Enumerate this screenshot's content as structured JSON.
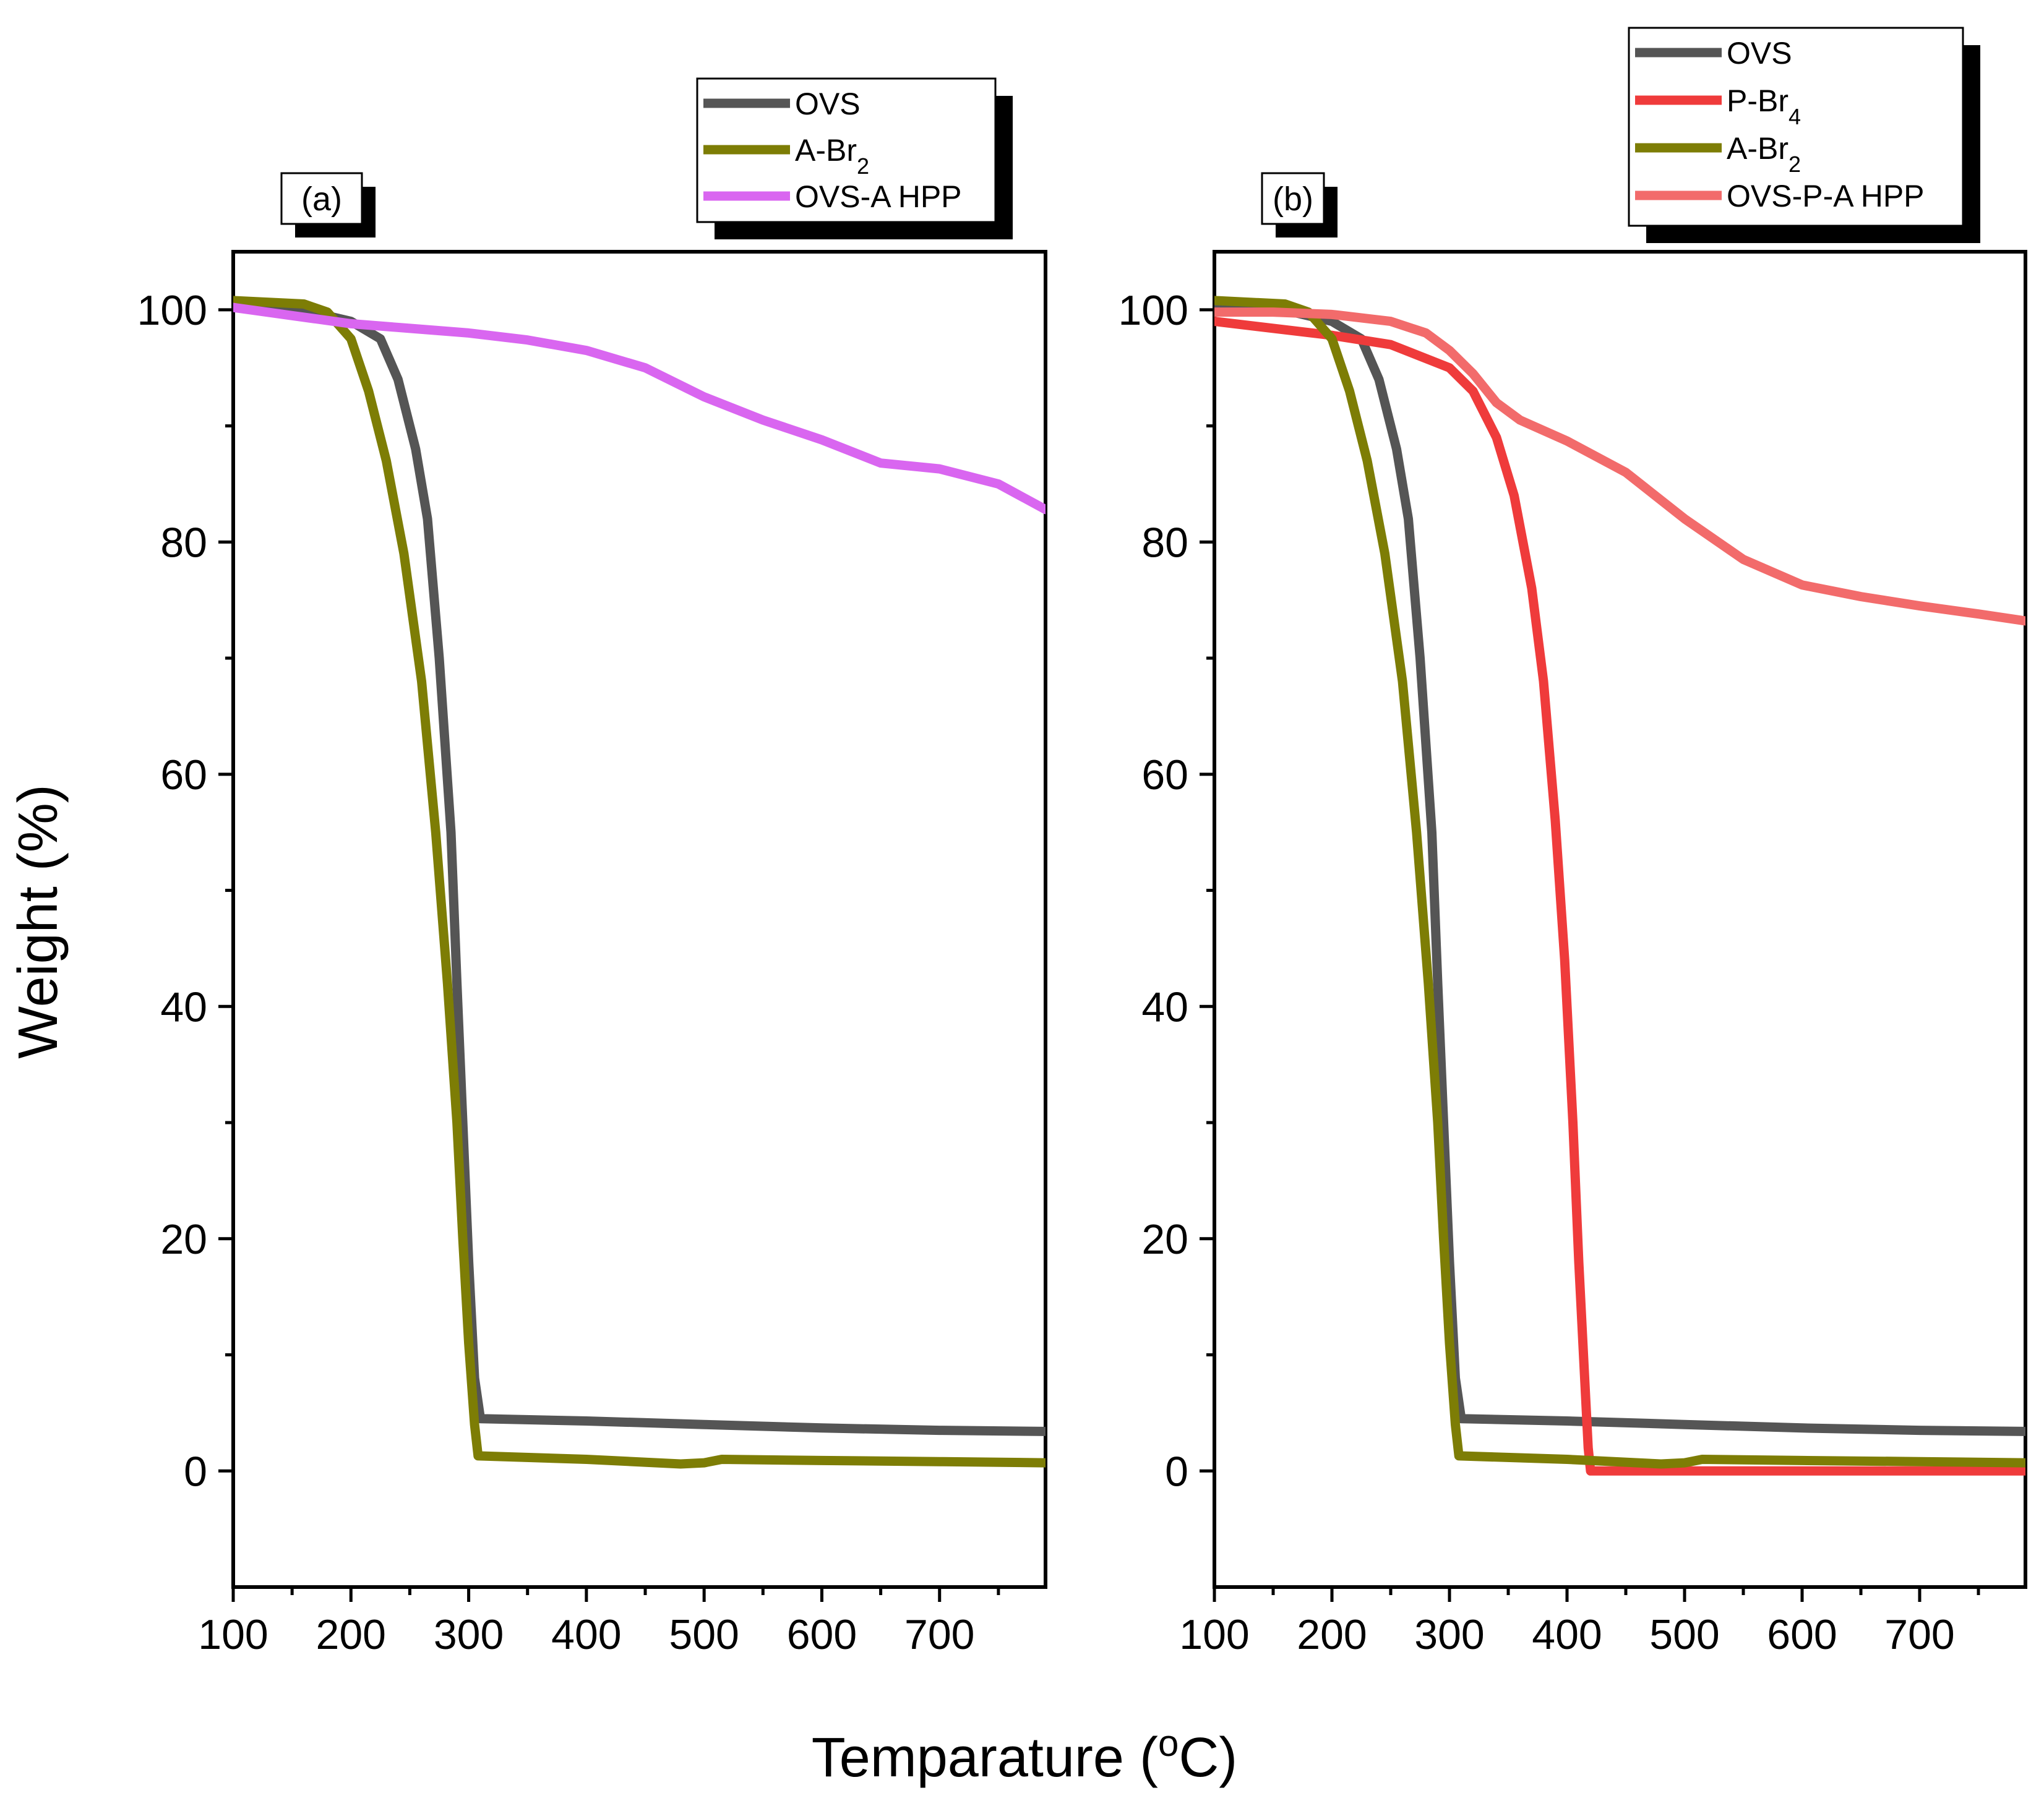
{
  "figure": {
    "ylabel": "Weight (%)",
    "xlabel": "Temparature (",
    "xlabel_sup": "o",
    "xlabel_end": "C)"
  },
  "colors": {
    "OVS": "#555555",
    "P-Br4": "#ef3b3b",
    "A-Br2": "#7d7d05",
    "OVS-A HPP": "#d966f0",
    "OVS-P-A HPP": "#f26b6b"
  },
  "chart_data": [
    {
      "type": "line",
      "panel": "(a)",
      "xlabel": "Temparature (oC)",
      "ylabel": "Weight (%)",
      "xlim": [
        100,
        790
      ],
      "ylim": [
        -10,
        105
      ],
      "xticks": [
        100,
        200,
        300,
        400,
        500,
        600,
        700
      ],
      "yticks": [
        0,
        20,
        40,
        60,
        80,
        100
      ],
      "legend": {
        "position": "top-right",
        "entries": [
          {
            "name": "OVS",
            "main": "OVS",
            "sub": ""
          },
          {
            "name": "A-Br2",
            "main": "A-Br",
            "sub": "2"
          },
          {
            "name": "OVS-A HPP",
            "main": "OVS-A HPP",
            "sub": ""
          }
        ]
      },
      "series": [
        {
          "name": "OVS",
          "x": [
            100,
            150,
            200,
            225,
            240,
            255,
            265,
            275,
            285,
            290,
            295,
            300,
            305,
            310,
            400,
            500,
            600,
            700,
            790
          ],
          "y": [
            100.5,
            100.2,
            99,
            97.5,
            94,
            88,
            82,
            70,
            55,
            42,
            30,
            18,
            8,
            4.5,
            4.3,
            4.0,
            3.7,
            3.5,
            3.4
          ]
        },
        {
          "name": "A-Br2",
          "x": [
            100,
            160,
            180,
            200,
            215,
            230,
            245,
            260,
            272,
            282,
            290,
            295,
            300,
            305,
            308,
            400,
            480,
            500,
            515,
            600,
            700,
            790
          ],
          "y": [
            100.8,
            100.5,
            99.8,
            97.5,
            93,
            87,
            79,
            68,
            55,
            42,
            30,
            20,
            11,
            4,
            1.3,
            1.0,
            0.6,
            0.7,
            1.0,
            0.9,
            0.8,
            0.7
          ]
        },
        {
          "name": "OVS-A HPP",
          "x": [
            100,
            150,
            200,
            250,
            300,
            350,
            400,
            450,
            500,
            550,
            600,
            650,
            700,
            750,
            790
          ],
          "y": [
            100.2,
            99.5,
            98.8,
            98.4,
            98,
            97.4,
            96.5,
            95,
            92.5,
            90.5,
            88.8,
            86.8,
            86.3,
            85,
            82.8
          ]
        }
      ]
    },
    {
      "type": "line",
      "panel": "(b)",
      "xlabel": "Temparature (oC)",
      "ylabel": "Weight (%)",
      "xlim": [
        100,
        790
      ],
      "ylim": [
        -10,
        105
      ],
      "xticks": [
        100,
        200,
        300,
        400,
        500,
        600,
        700
      ],
      "yticks": [
        0,
        20,
        40,
        60,
        80,
        100
      ],
      "legend": {
        "position": "top-right",
        "entries": [
          {
            "name": "OVS",
            "main": "OVS",
            "sub": ""
          },
          {
            "name": "P-Br4",
            "main": "P-Br",
            "sub": "4"
          },
          {
            "name": "A-Br2",
            "main": "A-Br",
            "sub": "2"
          },
          {
            "name": "OVS-P-A HPP",
            "main": "OVS-P-A HPP",
            "sub": ""
          }
        ]
      },
      "series": [
        {
          "name": "OVS",
          "x": [
            100,
            150,
            200,
            225,
            240,
            255,
            265,
            275,
            285,
            290,
            295,
            300,
            305,
            310,
            400,
            500,
            600,
            700,
            790
          ],
          "y": [
            100.5,
            100.2,
            99,
            97.5,
            94,
            88,
            82,
            70,
            55,
            42,
            30,
            18,
            8,
            4.5,
            4.3,
            4.0,
            3.7,
            3.5,
            3.4
          ]
        },
        {
          "name": "P-Br4",
          "x": [
            100,
            200,
            250,
            300,
            320,
            340,
            355,
            370,
            380,
            390,
            398,
            405,
            410,
            415,
            418,
            420,
            500,
            600,
            700,
            790
          ],
          "y": [
            99,
            97.8,
            97,
            95,
            93,
            89,
            84,
            76,
            68,
            56,
            44,
            30,
            18,
            8,
            2,
            0,
            0,
            0,
            0,
            0
          ]
        },
        {
          "name": "A-Br2",
          "x": [
            100,
            160,
            180,
            200,
            215,
            230,
            245,
            260,
            272,
            282,
            290,
            295,
            300,
            305,
            308,
            400,
            480,
            500,
            515,
            600,
            700,
            790
          ],
          "y": [
            100.8,
            100.5,
            99.8,
            97.5,
            93,
            87,
            79,
            68,
            55,
            42,
            30,
            20,
            11,
            4,
            1.3,
            1.0,
            0.6,
            0.7,
            1.0,
            0.9,
            0.8,
            0.7
          ]
        },
        {
          "name": "OVS-P-A HPP",
          "x": [
            100,
            150,
            200,
            250,
            280,
            300,
            320,
            340,
            360,
            400,
            450,
            500,
            550,
            600,
            650,
            700,
            750,
            790
          ],
          "y": [
            99.8,
            99.8,
            99.6,
            99,
            98,
            96.5,
            94.5,
            92,
            90.5,
            88.7,
            86,
            82,
            78.5,
            76.3,
            75.3,
            74.5,
            73.8,
            73.2
          ]
        }
      ]
    }
  ]
}
